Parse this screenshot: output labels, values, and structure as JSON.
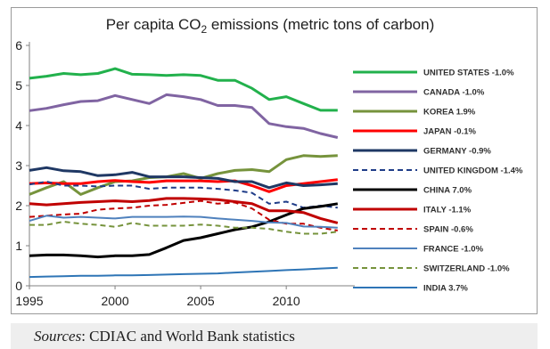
{
  "chart_data": {
    "type": "line",
    "title": "Per capita CO2 emissions (metric tons of carbon)",
    "title_parts": {
      "pre": "Per capita CO",
      "sub": "2",
      "post": " emissions (metric tons of carbon)"
    },
    "xlabel": "",
    "ylabel": "",
    "xlim": [
      1995,
      2014
    ],
    "ylim": [
      0,
      6
    ],
    "x_ticks": [
      1995,
      2000,
      2005,
      2010
    ],
    "y_ticks": [
      0,
      1,
      2,
      3,
      4,
      5,
      6
    ],
    "grid": false,
    "legend_placement": "right",
    "x": [
      1995,
      1996,
      1997,
      1998,
      1999,
      2000,
      2001,
      2002,
      2003,
      2004,
      2005,
      2006,
      2007,
      2008,
      2009,
      2010,
      2011,
      2012,
      2013
    ],
    "series": [
      {
        "name": "UNITED STATES -1.0%",
        "color": "#22b14c",
        "dash": "solid",
        "width": 3,
        "values": [
          5.18,
          5.23,
          5.3,
          5.27,
          5.3,
          5.42,
          5.28,
          5.27,
          5.25,
          5.27,
          5.25,
          5.13,
          5.13,
          4.93,
          4.65,
          4.72,
          4.55,
          4.38,
          4.38
        ]
      },
      {
        "name": "CANADA -1.0%",
        "color": "#8064a2",
        "dash": "solid",
        "width": 3,
        "values": [
          4.37,
          4.43,
          4.52,
          4.6,
          4.62,
          4.75,
          4.65,
          4.55,
          4.77,
          4.72,
          4.65,
          4.5,
          4.5,
          4.45,
          4.05,
          3.97,
          3.93,
          3.8,
          3.7
        ]
      },
      {
        "name": "KOREA 1.9%",
        "color": "#76933c",
        "dash": "solid",
        "width": 3,
        "values": [
          2.28,
          2.45,
          2.6,
          2.28,
          2.45,
          2.6,
          2.62,
          2.7,
          2.72,
          2.8,
          2.68,
          2.8,
          2.88,
          2.9,
          2.85,
          3.15,
          3.25,
          3.23,
          3.25
        ]
      },
      {
        "name": "JAPAN -0.1%",
        "color": "#ff0000",
        "dash": "solid",
        "width": 3,
        "values": [
          2.55,
          2.57,
          2.55,
          2.55,
          2.6,
          2.63,
          2.6,
          2.58,
          2.62,
          2.62,
          2.62,
          2.6,
          2.62,
          2.5,
          2.35,
          2.5,
          2.55,
          2.6,
          2.65
        ]
      },
      {
        "name": "GERMANY -0.9%",
        "color": "#1f3864",
        "dash": "solid",
        "width": 3,
        "values": [
          2.88,
          2.95,
          2.87,
          2.85,
          2.75,
          2.77,
          2.83,
          2.72,
          2.72,
          2.72,
          2.7,
          2.68,
          2.6,
          2.6,
          2.45,
          2.57,
          2.5,
          2.52,
          2.55
        ]
      },
      {
        "name": "UNITED KINGDOM -1.4%",
        "color": "#1f3c88",
        "dash": "dashed",
        "width": 2,
        "values": [
          2.53,
          2.6,
          2.5,
          2.5,
          2.48,
          2.5,
          2.5,
          2.42,
          2.45,
          2.45,
          2.45,
          2.42,
          2.38,
          2.32,
          2.05,
          2.1,
          1.95,
          2.0,
          1.95
        ]
      },
      {
        "name": "CHINA 7.0%",
        "color": "#000000",
        "dash": "solid",
        "width": 3,
        "values": [
          0.75,
          0.77,
          0.77,
          0.75,
          0.72,
          0.75,
          0.75,
          0.78,
          0.95,
          1.13,
          1.2,
          1.3,
          1.4,
          1.47,
          1.6,
          1.77,
          1.93,
          1.98,
          2.05
        ]
      },
      {
        "name": "ITALY -1.1%",
        "color": "#c00000",
        "dash": "solid",
        "width": 3,
        "values": [
          2.05,
          2.02,
          2.05,
          2.08,
          2.1,
          2.12,
          2.1,
          2.13,
          2.18,
          2.18,
          2.17,
          2.15,
          2.1,
          2.05,
          1.87,
          1.87,
          1.83,
          1.68,
          1.57
        ]
      },
      {
        "name": "SPAIN -0.6%",
        "color": "#c00000",
        "dash": "dashed",
        "width": 2,
        "values": [
          1.72,
          1.75,
          1.78,
          1.8,
          1.9,
          1.93,
          1.95,
          2.0,
          2.02,
          2.07,
          2.12,
          2.05,
          2.08,
          1.93,
          1.65,
          1.55,
          1.55,
          1.45,
          1.38
        ]
      },
      {
        "name": "FRANCE -1.0%",
        "color": "#4f81bd",
        "dash": "solid",
        "width": 2,
        "values": [
          1.62,
          1.75,
          1.7,
          1.72,
          1.7,
          1.68,
          1.72,
          1.72,
          1.72,
          1.73,
          1.72,
          1.68,
          1.65,
          1.62,
          1.58,
          1.57,
          1.48,
          1.47,
          1.45
        ]
      },
      {
        "name": "SWITZERLAND -1.0%",
        "color": "#76933c",
        "dash": "dashed",
        "width": 2,
        "values": [
          1.52,
          1.52,
          1.6,
          1.55,
          1.52,
          1.47,
          1.57,
          1.5,
          1.5,
          1.5,
          1.53,
          1.5,
          1.45,
          1.45,
          1.42,
          1.35,
          1.3,
          1.3,
          1.35
        ]
      },
      {
        "name": "INDIA 3.7%",
        "color": "#2e75b6",
        "dash": "solid",
        "width": 2,
        "values": [
          0.22,
          0.23,
          0.24,
          0.25,
          0.25,
          0.26,
          0.26,
          0.27,
          0.28,
          0.29,
          0.3,
          0.31,
          0.33,
          0.35,
          0.37,
          0.39,
          0.41,
          0.43,
          0.45
        ]
      }
    ]
  },
  "footer": {
    "source_label": "Sources",
    "source_text": ": CDIAC and World Bank statistics"
  }
}
